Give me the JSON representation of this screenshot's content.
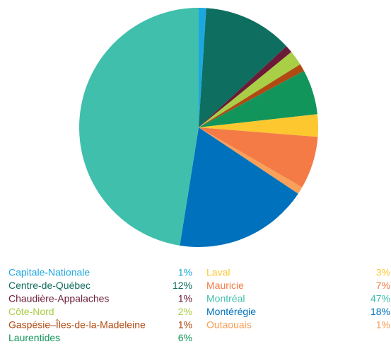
{
  "chart_data": {
    "type": "pie",
    "categories": [
      "Capitale-Nationale",
      "Centre-de-Québec",
      "Chaudière-Appalaches",
      "Côte-Nord",
      "Gaspésie–Îles-de-la-Madeleine",
      "Laurentides",
      "Laval",
      "Mauricie",
      "Montréal",
      "Montérégie",
      "Outaouais"
    ],
    "values": [
      1,
      12,
      1,
      2,
      1,
      6,
      3,
      7,
      47,
      18,
      1
    ],
    "value_labels": [
      "1%",
      "12%",
      "1%",
      "2%",
      "1%",
      "6%",
      "3%",
      "7%",
      "47%",
      "18%",
      "1%"
    ],
    "colors": [
      "#1ba8e0",
      "#0e6e5f",
      "#6b1a37",
      "#a8cf45",
      "#b04a12",
      "#12955a",
      "#fdc82f",
      "#f47b46",
      "#40bfad",
      "#0071bc",
      "#f9a05a"
    ]
  }
}
